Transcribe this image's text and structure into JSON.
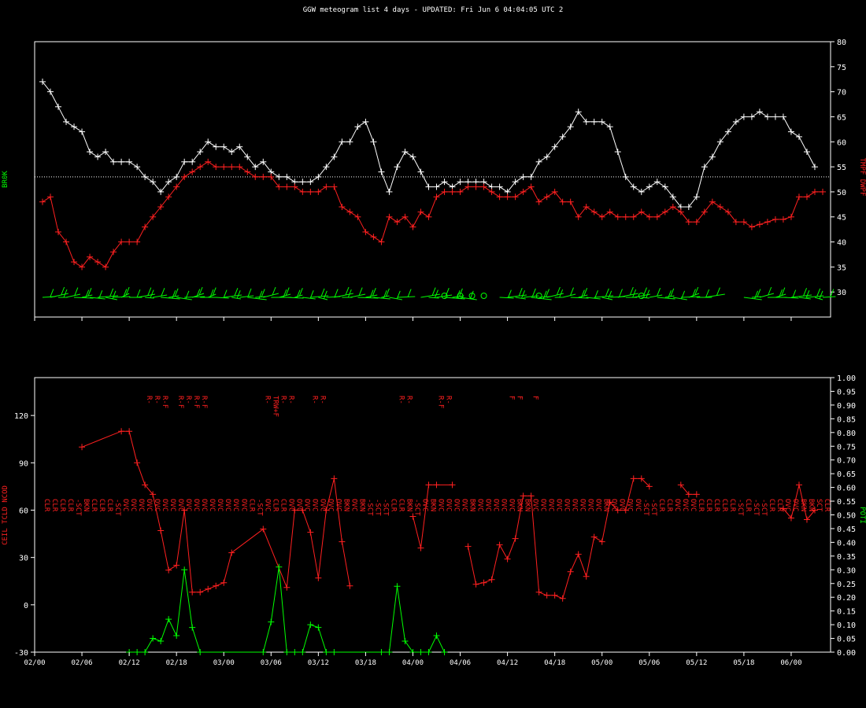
{
  "title": "GGW meteogram list 4 days - UPDATED: Fri Jun 6 04:04:05 UTC 2",
  "colors": {
    "background": "#000000",
    "frame": "#ffffff",
    "temperature": "#ffffff",
    "dewpoint": "#ff2020",
    "wind": "#00ff00",
    "ceiling": "#ff2020",
    "precip": "#00ff00"
  },
  "x_ticks": [
    "02/00",
    "02/06",
    "02/12",
    "02/18",
    "03/00",
    "03/06",
    "03/12",
    "03/18",
    "04/00",
    "04/06",
    "04/12",
    "04/18",
    "05/00",
    "05/06",
    "05/12",
    "05/18",
    "06/00"
  ],
  "chart_data": [
    {
      "type": "line",
      "ylabel_right": "TMPF DWPF",
      "ylabel_left": "BR0K",
      "yticks": [
        30,
        35,
        40,
        45,
        50,
        55,
        60,
        65,
        70,
        75,
        80
      ],
      "ylim": [
        25,
        80
      ],
      "xlim": [
        0,
        101
      ],
      "reference_line": 53,
      "grid": false,
      "x": [
        1,
        2,
        3,
        4,
        5,
        6,
        7,
        8,
        9,
        10,
        11,
        12,
        13,
        14,
        15,
        16,
        17,
        18,
        19,
        20,
        21,
        22,
        23,
        24,
        25,
        26,
        27,
        28,
        29,
        30,
        31,
        32,
        33,
        34,
        35,
        36,
        37,
        38,
        39,
        40,
        41,
        42,
        43,
        44,
        45,
        46,
        47,
        48,
        49,
        50,
        51,
        52,
        53,
        54,
        55,
        56,
        57,
        58,
        59,
        60,
        61,
        62,
        63,
        64,
        65,
        66,
        67,
        68,
        69,
        70,
        71,
        72,
        73,
        74,
        75,
        76,
        77,
        78,
        79,
        80,
        81,
        82,
        83,
        84,
        85,
        86,
        87,
        88,
        89,
        90,
        91,
        92,
        93,
        94,
        95,
        96,
        97,
        98,
        99,
        100
      ],
      "series": [
        {
          "name": "TMPF",
          "values": [
            72,
            70,
            67,
            64,
            63,
            62,
            58,
            57,
            58,
            56,
            56,
            56,
            55,
            53,
            52,
            50,
            52,
            53,
            56,
            56,
            58,
            60,
            59,
            59,
            58,
            59,
            57,
            55,
            56,
            54,
            53,
            53,
            52,
            52,
            52,
            53,
            55,
            57,
            60,
            60,
            63,
            64,
            60,
            54,
            50,
            55,
            58,
            57,
            54,
            51,
            51,
            52,
            51,
            52,
            52,
            52,
            52,
            51,
            51,
            50,
            52,
            53,
            53,
            56,
            57,
            59,
            61,
            63,
            66,
            64,
            64,
            64,
            63,
            58,
            53,
            51,
            50,
            51,
            52,
            51,
            49,
            47,
            47,
            49,
            55,
            57,
            60,
            62,
            64,
            65,
            65,
            66,
            65,
            65,
            65,
            62,
            61,
            58,
            55,
            null
          ]
        },
        {
          "name": "DWPF",
          "values": [
            48,
            49,
            42,
            40,
            36,
            35,
            37,
            36,
            35,
            38,
            40,
            40,
            40,
            43,
            45,
            47,
            49,
            51,
            53,
            54,
            55,
            56,
            55,
            55,
            55,
            55,
            54,
            53,
            53,
            53,
            51,
            51,
            51,
            50,
            50,
            50,
            51,
            51,
            47,
            46,
            45,
            42,
            41,
            40,
            45,
            44,
            45,
            43,
            46,
            45,
            49,
            50,
            50,
            50,
            51,
            51,
            51,
            50,
            49,
            49,
            49,
            50,
            51,
            48,
            49,
            50,
            48,
            48,
            45,
            47,
            46,
            45,
            46,
            45,
            45,
            45,
            46,
            45,
            45,
            46,
            47,
            46,
            44,
            44,
            46,
            48,
            47,
            46,
            44,
            44,
            43,
            43.5,
            44,
            44.5,
            44.5,
            45,
            49,
            49,
            50,
            50
          ]
        }
      ]
    },
    {
      "type": "line",
      "ylabel_left": "CEIL TCLD NCOD",
      "ylabel_right": "POTI",
      "yticks": [
        -30,
        0,
        30,
        60,
        90,
        120
      ],
      "ylim": [
        -30,
        144
      ],
      "y2ticks": [
        "0.00",
        "0.05",
        "0.10",
        "0.15",
        "0.20",
        "0.25",
        "0.30",
        "0.35",
        "0.40",
        "0.45",
        "0.50",
        "0.55",
        "0.60",
        "0.65",
        "0.70",
        "0.75",
        "0.80",
        "0.85",
        "0.90",
        "0.95",
        "1.00"
      ],
      "y2lim": [
        0,
        1
      ],
      "xlim": [
        0,
        101
      ],
      "series": [
        {
          "name": "CEIL",
          "x": [
            6,
            11,
            12,
            13,
            14,
            15,
            16,
            17,
            18,
            19,
            20,
            21,
            22,
            23,
            24,
            25,
            29,
            32,
            33,
            34,
            35,
            36,
            37,
            38,
            39,
            40,
            43,
            47,
            48,
            49,
            50,
            51,
            53,
            54,
            55,
            56,
            57,
            58,
            59,
            60,
            61,
            62,
            63,
            64,
            65,
            66,
            67,
            68,
            69,
            70,
            71,
            72,
            73,
            74,
            75,
            76,
            77,
            78,
            79,
            80,
            81,
            82,
            83,
            84,
            85,
            86,
            87,
            88,
            89,
            90,
            91,
            92,
            93,
            94,
            95,
            96,
            97,
            98,
            99,
            100
          ],
          "values": [
            100,
            110,
            110,
            90,
            76,
            70,
            47,
            22,
            25,
            60,
            8,
            8,
            10,
            12,
            14,
            33,
            48,
            11,
            60,
            60,
            46,
            17,
            60,
            80,
            40,
            12,
            null,
            null,
            56,
            36,
            76,
            76,
            76,
            null,
            37,
            13,
            14,
            16,
            38,
            29,
            42,
            69,
            69,
            8,
            6,
            6,
            4,
            21,
            32,
            18,
            43,
            40,
            65,
            60,
            60,
            80,
            80,
            75,
            null,
            null,
            null,
            76,
            70,
            70,
            null,
            null,
            null,
            null,
            null,
            null,
            null,
            null,
            null,
            null,
            61,
            55,
            76,
            54,
            60,
            null
          ]
        },
        {
          "name": "POTI",
          "x": [
            12,
            13,
            14,
            15,
            16,
            17,
            18,
            19,
            20,
            21,
            29,
            30,
            31,
            32,
            33,
            34,
            35,
            36,
            37,
            38,
            44,
            45,
            46,
            47,
            48,
            49,
            50,
            51,
            52
          ],
          "values": [
            0,
            0,
            0,
            0.05,
            0.04,
            0.12,
            0.06,
            0.3,
            0.09,
            0,
            0,
            0.11,
            0.31,
            0,
            0,
            0,
            0.1,
            0.09,
            0,
            0,
            0,
            0,
            0.24,
            0.04,
            0,
            0,
            0,
            0.06,
            0
          ]
        }
      ],
      "cloud_cover_labels": [
        "CLR",
        "CLR",
        "CLR",
        "CLR",
        "-SCT",
        "BKN",
        "CLR",
        "CLR",
        "CLR",
        "-SCT",
        "OVC",
        "OVC",
        "OVC",
        "OVC",
        "OVC",
        "OVC",
        "OVC",
        "OVC",
        "OVC",
        "OVC",
        "OVC",
        "OVC",
        "OVC",
        "OVC",
        "OVC",
        "OVC",
        "CLR",
        "-SCT",
        "OVC",
        "CLR",
        "CLR",
        "OVC",
        "OVC",
        "OVC",
        "OVC",
        "OVC",
        "OVC",
        "OVC",
        "BKN",
        "OVC",
        "BKN",
        "-SCT",
        "-SCT",
        "-SCT",
        "CLR",
        "CLR",
        "BKN",
        "-SCT",
        "OVC",
        "BKN",
        "OVC",
        "OVC",
        "OVC",
        "OVC",
        "BKN",
        "OVC",
        "OVC",
        "OVC",
        "OVC",
        "OVC",
        "BKN",
        "BKN",
        "OVC",
        "OVC",
        "OVC",
        "OVC",
        "OVC",
        "OVC",
        "OVC",
        "OVC",
        "OVC",
        "BKN",
        "OVC",
        "OVC",
        "OVC",
        "OVC",
        "-SCT",
        "-SCT",
        "CLR",
        "CLR",
        "OVC",
        "OVC",
        "OVC",
        "CLR",
        "CLR",
        "CLR",
        "CLR",
        "CLR",
        "-SCT",
        "CLR",
        "-SCT",
        "-SCT",
        "CLR",
        "CLR",
        "OVC",
        "OVC",
        "BKN",
        "BKN",
        "SCT",
        "CLR"
      ],
      "weather_codes": [
        {
          "x": 14,
          "lines": [
            "R-"
          ]
        },
        {
          "x": 15,
          "lines": [
            "R-"
          ]
        },
        {
          "x": 16,
          "lines": [
            "R-F"
          ]
        },
        {
          "x": 18,
          "lines": [
            "R-F"
          ]
        },
        {
          "x": 19,
          "lines": [
            "R-"
          ]
        },
        {
          "x": 20,
          "lines": [
            "R-F"
          ]
        },
        {
          "x": 21,
          "lines": [
            "R-F"
          ]
        },
        {
          "x": 29,
          "lines": [
            "R-"
          ]
        },
        {
          "x": 30,
          "lines": [
            "TRW+F"
          ]
        },
        {
          "x": 31,
          "lines": [
            "R-"
          ]
        },
        {
          "x": 32,
          "lines": [
            "R-"
          ]
        },
        {
          "x": 35,
          "lines": [
            "R-"
          ]
        },
        {
          "x": 36,
          "lines": [
            "R-"
          ]
        },
        {
          "x": 46,
          "lines": [
            "R-"
          ]
        },
        {
          "x": 47,
          "lines": [
            "R-"
          ]
        },
        {
          "x": 51,
          "lines": [
            "R-F"
          ]
        },
        {
          "x": 52,
          "lines": [
            "R-"
          ]
        },
        {
          "x": 60,
          "lines": [
            "F"
          ]
        },
        {
          "x": 61,
          "lines": [
            "F"
          ]
        },
        {
          "x": 63,
          "lines": [
            "F"
          ]
        }
      ]
    }
  ]
}
